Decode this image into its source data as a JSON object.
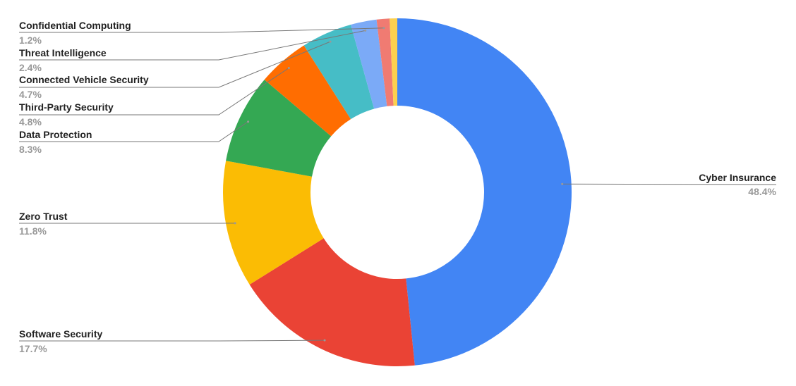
{
  "chart_data": {
    "type": "donut",
    "categories": [
      "Cyber Insurance",
      "Software Security",
      "Zero Trust",
      "Data Protection",
      "Third-Party Security",
      "Connected Vehicle Security",
      "Threat Intelligence",
      "Confidential Computing",
      null
    ],
    "values": [
      48.4,
      17.7,
      11.8,
      8.3,
      4.8,
      4.7,
      2.4,
      1.2,
      0.7
    ],
    "value_labels": [
      "48.4%",
      "17.7%",
      "11.8%",
      "8.3%",
      "4.8%",
      "4.7%",
      "2.4%",
      "1.2%",
      null
    ],
    "colors": [
      "#4285f4",
      "#ea4335",
      "#fbbc04",
      "#34a853",
      "#ff6d01",
      "#46bdc6",
      "#7baaf7",
      "#f07b72",
      "#fcd04f"
    ]
  }
}
